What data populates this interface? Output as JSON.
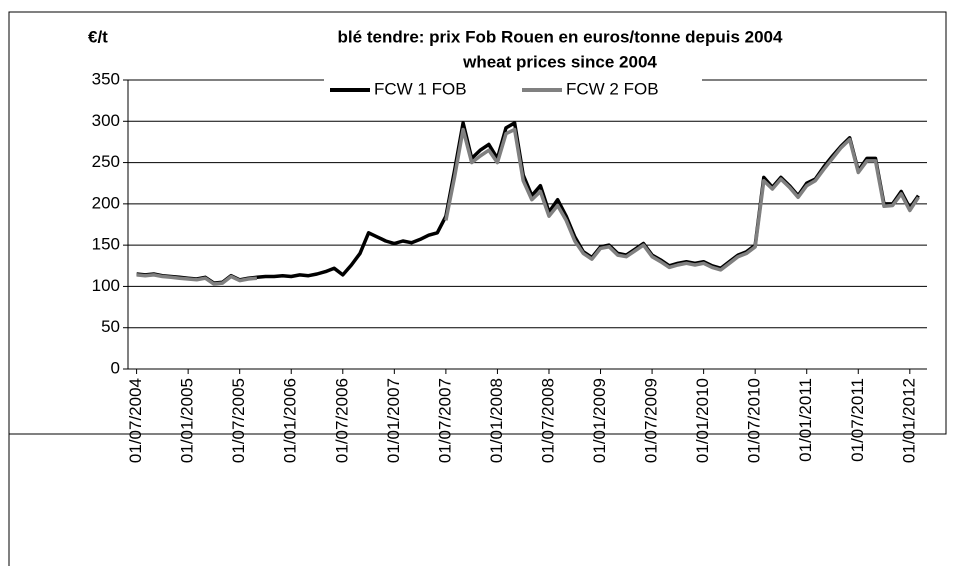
{
  "chart_data": {
    "type": "line",
    "title": "blé tendre: prix Fob Rouen en euros/tonne depuis 2004",
    "subtitle": "wheat prices since 2004",
    "y_label": "€/t",
    "x": [
      "01/07/2004",
      "01/08/2004",
      "01/09/2004",
      "01/10/2004",
      "01/11/2004",
      "01/12/2004",
      "01/01/2005",
      "01/02/2005",
      "01/03/2005",
      "01/04/2005",
      "01/05/2005",
      "01/06/2005",
      "01/07/2005",
      "01/08/2005",
      "01/09/2005",
      "01/10/2005",
      "01/11/2005",
      "01/12/2005",
      "01/01/2006",
      "01/02/2006",
      "01/03/2006",
      "01/04/2006",
      "01/05/2006",
      "01/06/2006",
      "01/07/2006",
      "01/08/2006",
      "01/09/2006",
      "01/10/2006",
      "01/11/2006",
      "01/12/2006",
      "01/01/2007",
      "01/02/2007",
      "01/03/2007",
      "01/04/2007",
      "01/05/2007",
      "01/06/2007",
      "01/07/2007",
      "01/08/2007",
      "01/09/2007",
      "01/10/2007",
      "01/11/2007",
      "01/12/2007",
      "01/01/2008",
      "01/02/2008",
      "01/03/2008",
      "01/04/2008",
      "01/05/2008",
      "01/06/2008",
      "01/07/2008",
      "01/08/2008",
      "01/09/2008",
      "01/10/2008",
      "01/11/2008",
      "01/12/2008",
      "01/01/2009",
      "01/02/2009",
      "01/03/2009",
      "01/04/2009",
      "01/05/2009",
      "01/06/2009",
      "01/07/2009",
      "01/08/2009",
      "01/09/2009",
      "01/10/2009",
      "01/11/2009",
      "01/12/2009",
      "01/01/2010",
      "01/02/2010",
      "01/03/2010",
      "01/04/2010",
      "01/05/2010",
      "01/06/2010",
      "01/07/2010",
      "01/08/2010",
      "01/09/2010",
      "01/10/2010",
      "01/11/2010",
      "01/12/2010",
      "01/01/2011",
      "01/02/2011",
      "01/03/2011",
      "01/04/2011",
      "01/05/2011",
      "01/06/2011",
      "01/07/2011",
      "01/08/2011",
      "01/09/2011",
      "01/10/2011",
      "01/11/2011",
      "01/12/2011",
      "01/01/2012",
      "01/02/2012"
    ],
    "series": [
      {
        "name": "FCW 1 FOB",
        "color": "#000000",
        "values": [
          115,
          114,
          115,
          113,
          112,
          111,
          110,
          109,
          111,
          104,
          105,
          113,
          108,
          110,
          111,
          112,
          112,
          113,
          112,
          114,
          113,
          115,
          118,
          122,
          114,
          126,
          140,
          165,
          160,
          155,
          152,
          155,
          153,
          157,
          162,
          165,
          185,
          240,
          298,
          255,
          265,
          272,
          255,
          292,
          298,
          235,
          210,
          222,
          190,
          205,
          185,
          160,
          142,
          135,
          148,
          150,
          140,
          138,
          145,
          152,
          138,
          132,
          125,
          128,
          130,
          128,
          130,
          125,
          122,
          130,
          138,
          142,
          150,
          232,
          220,
          232,
          222,
          210,
          225,
          230,
          245,
          258,
          270,
          280,
          240,
          255,
          255,
          200,
          200,
          215,
          195,
          210
        ]
      },
      {
        "name": "FCW 2 FOB",
        "color": "#808080",
        "values": [
          114,
          113,
          114,
          112,
          111,
          110,
          109,
          108,
          110,
          103,
          104,
          112,
          107,
          109,
          110,
          null,
          null,
          null,
          null,
          null,
          null,
          null,
          null,
          null,
          null,
          null,
          null,
          null,
          null,
          null,
          null,
          null,
          null,
          null,
          null,
          null,
          180,
          232,
          290,
          250,
          258,
          265,
          250,
          285,
          290,
          228,
          205,
          215,
          185,
          198,
          180,
          155,
          140,
          133,
          146,
          148,
          138,
          136,
          143,
          150,
          136,
          130,
          123,
          126,
          128,
          126,
          128,
          123,
          120,
          128,
          136,
          140,
          148,
          228,
          218,
          230,
          220,
          208,
          222,
          228,
          242,
          255,
          268,
          278,
          238,
          252,
          252,
          197,
          198,
          212,
          192,
          208
        ]
      }
    ],
    "xlim": [
      "01/06/2004",
      "01/03/2012"
    ],
    "xticks": [
      "01/07/2004",
      "01/01/2005",
      "01/07/2005",
      "01/01/2006",
      "01/07/2006",
      "01/01/2007",
      "01/07/2007",
      "01/01/2008",
      "01/07/2008",
      "01/01/2009",
      "01/07/2009",
      "01/01/2010",
      "01/07/2010",
      "01/01/2011",
      "01/07/2011",
      "01/01/2012"
    ],
    "ylim": [
      0,
      350
    ],
    "yticks": [
      0,
      50,
      100,
      150,
      200,
      250,
      300,
      350
    ],
    "grid": true,
    "legend": "top"
  }
}
